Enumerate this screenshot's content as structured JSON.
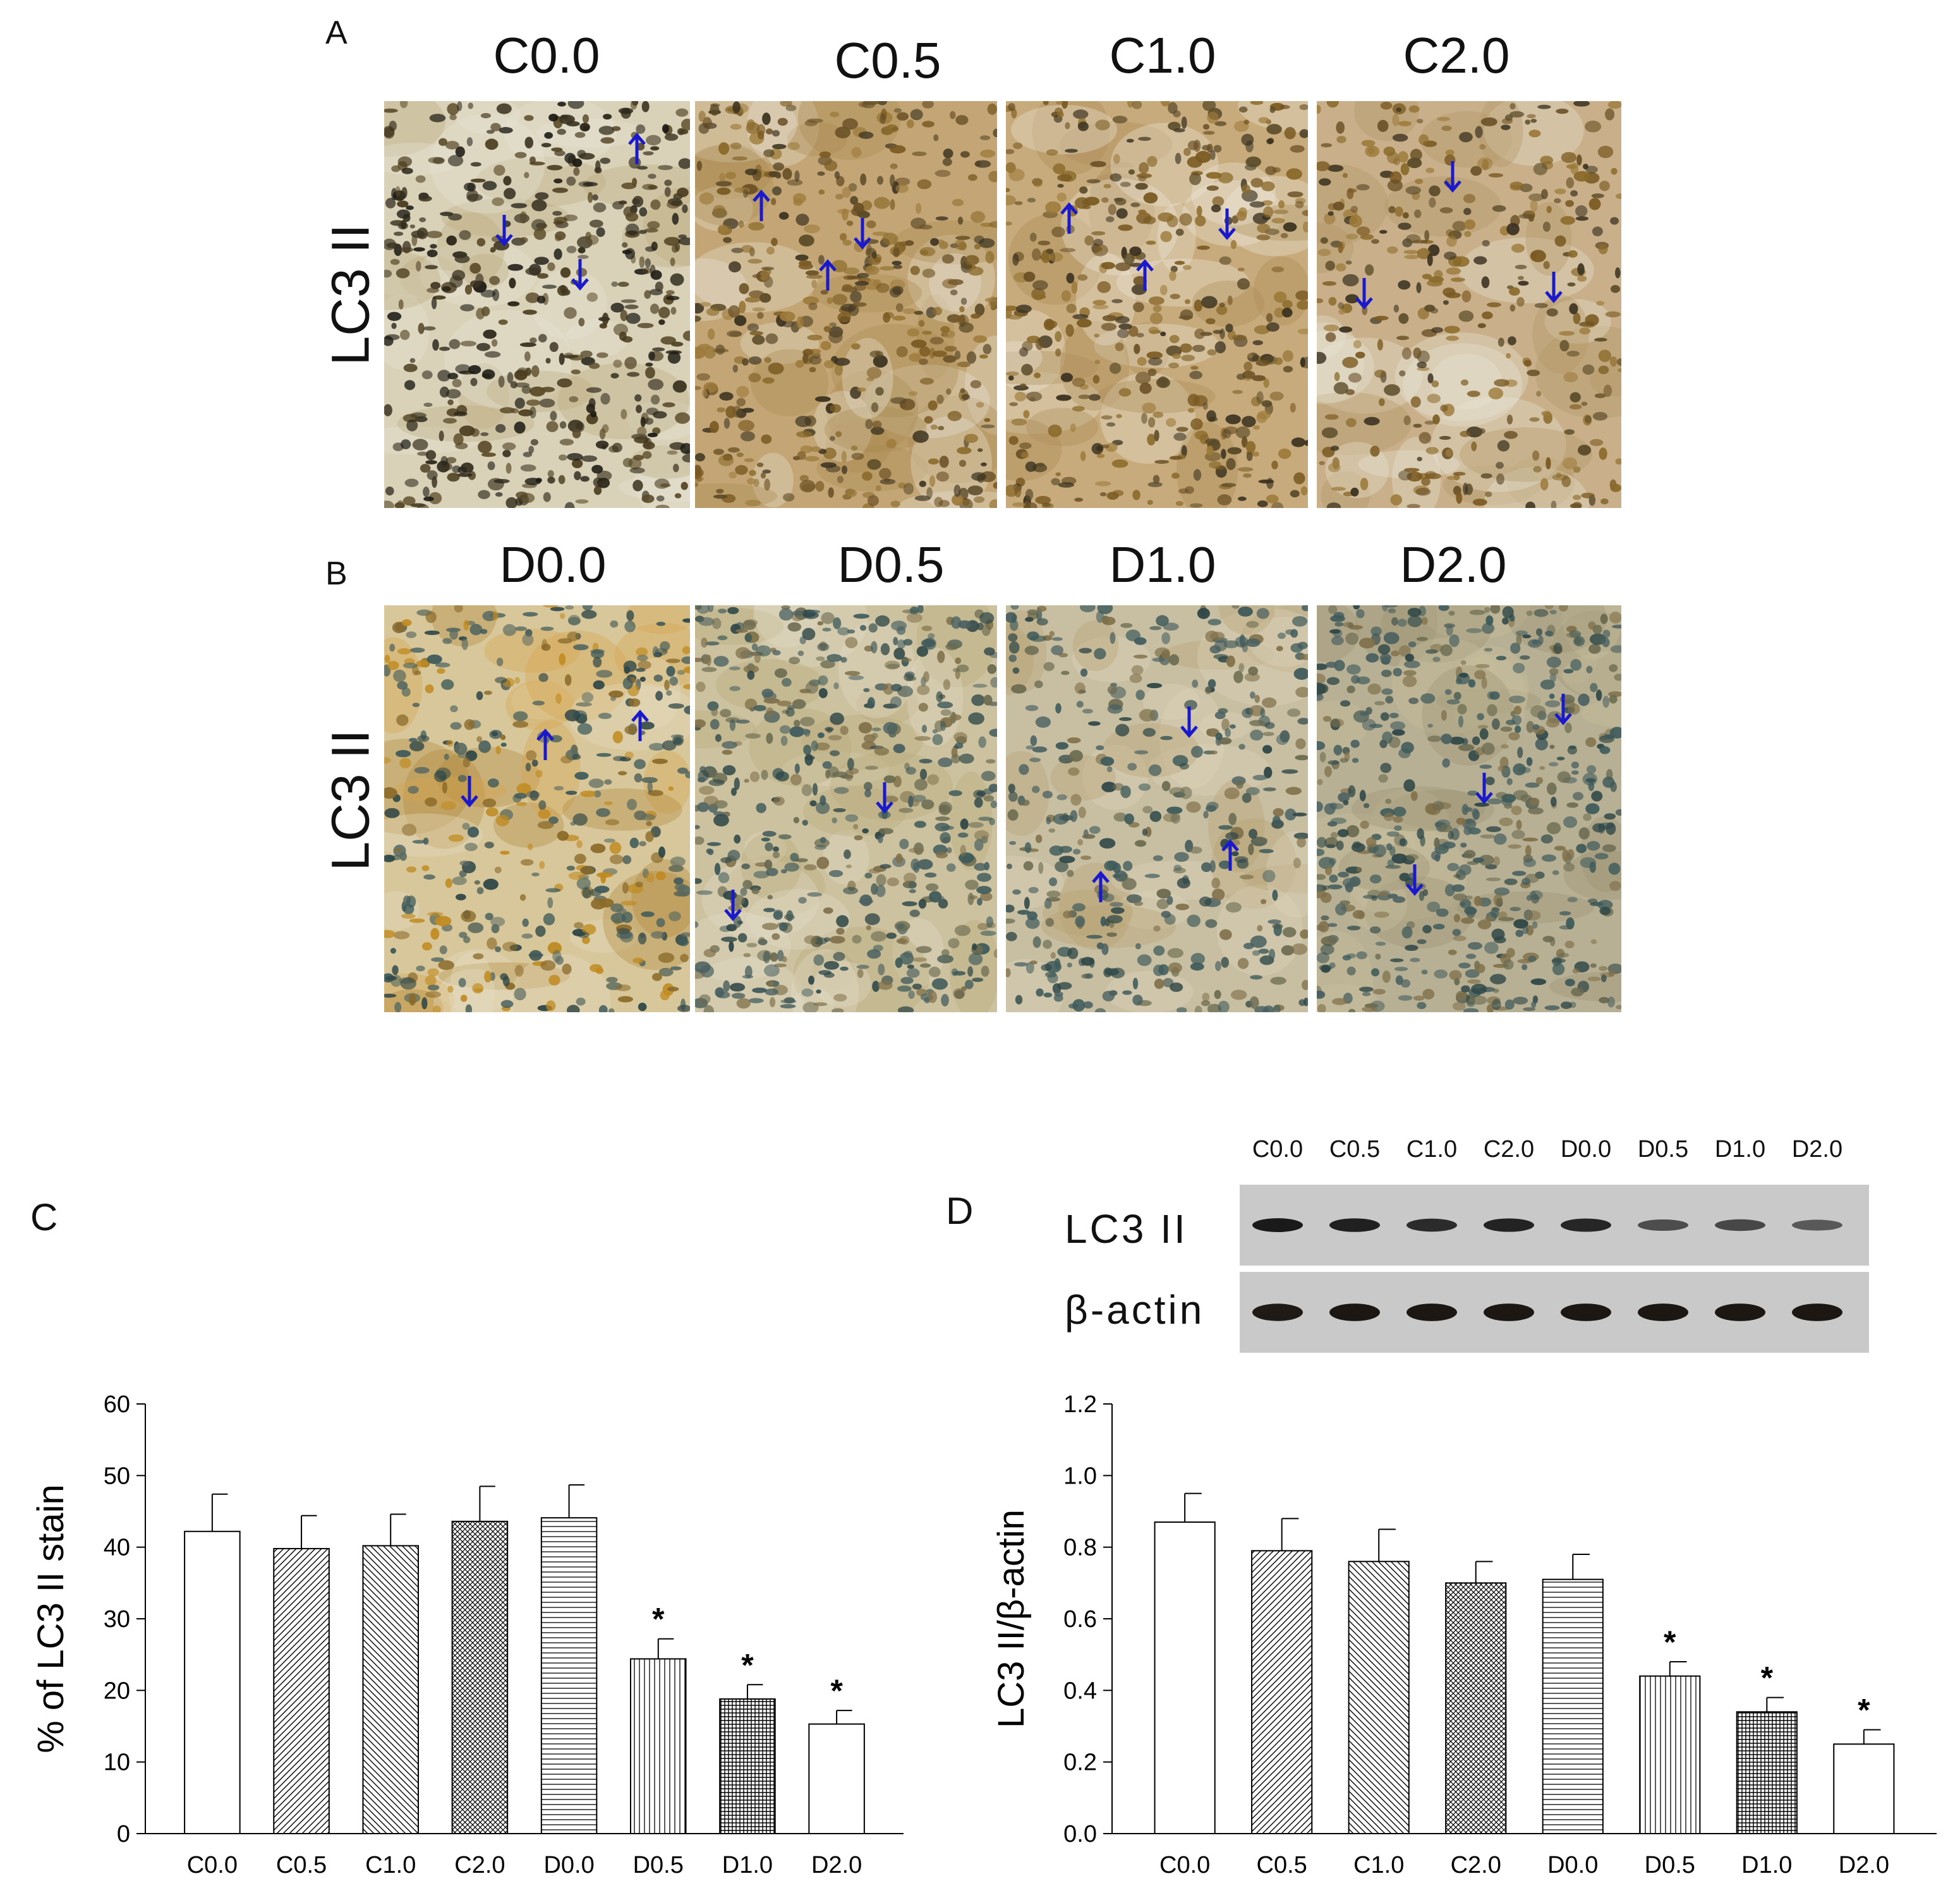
{
  "figure": {
    "panel_a": {
      "letter": "A",
      "row_label": "LC3 II",
      "columns": [
        "C0.0",
        "C0.5",
        "C1.0",
        "C2.0"
      ]
    },
    "panel_b": {
      "letter": "B",
      "row_label": "LC3 II",
      "columns": [
        "D0.0",
        "D0.5",
        "D1.0",
        "D2.0"
      ]
    },
    "panel_c": {
      "letter": "C"
    },
    "panel_d": {
      "letter": "D",
      "lanes": [
        "C0.0",
        "C0.5",
        "C1.0",
        "C2.0",
        "D0.0",
        "D0.5",
        "D1.0",
        "D2.0"
      ],
      "blot_rows": [
        "LC3 II",
        "β-actin"
      ],
      "lc3_band_intensity": [
        1.0,
        0.95,
        0.85,
        0.92,
        0.9,
        0.55,
        0.6,
        0.45
      ],
      "actin_band_intensity": [
        0.95,
        0.98,
        0.98,
        0.98,
        0.98,
        0.98,
        0.98,
        0.98
      ]
    },
    "colors": {
      "arrow": "#1a1acc",
      "stain_brown": "#8a6a2a",
      "blot_bg": "#c9c9c9"
    }
  },
  "chart_data": [
    {
      "type": "bar",
      "panel": "C",
      "title": "",
      "xlabel": "",
      "ylabel": "% of LC3 II stain",
      "ylim": [
        0,
        60
      ],
      "yticks": [
        0,
        10,
        20,
        30,
        40,
        50,
        60
      ],
      "categories": [
        "C0.0",
        "C0.5",
        "C1.0",
        "C2.0",
        "D0.0",
        "D0.5",
        "D1.0",
        "D2.0"
      ],
      "values": [
        42.2,
        39.8,
        40.2,
        43.6,
        44.1,
        24.4,
        18.8,
        15.3
      ],
      "errors": [
        5.2,
        4.6,
        4.4,
        4.9,
        4.6,
        2.8,
        2.0,
        1.9
      ],
      "patterns": [
        "none",
        "diag-right",
        "diag-left",
        "crosshatch",
        "horizontal",
        "vertical",
        "grid",
        "none"
      ],
      "annotations": [
        "",
        "",
        "",
        "",
        "",
        "*",
        "*",
        "*"
      ]
    },
    {
      "type": "bar",
      "panel": "D",
      "title": "",
      "xlabel": "",
      "ylabel": "LC3 II/β-actin",
      "ylim": [
        0,
        1.2
      ],
      "yticks": [
        "0.0",
        "0.2",
        "0.4",
        "0.6",
        "0.8",
        "1.0",
        "1.2"
      ],
      "categories": [
        "C0.0",
        "C0.5",
        "C1.0",
        "C2.0",
        "D0.0",
        "D0.5",
        "D1.0",
        "D2.0"
      ],
      "values": [
        0.87,
        0.79,
        0.76,
        0.7,
        0.71,
        0.44,
        0.34,
        0.25
      ],
      "errors": [
        0.08,
        0.09,
        0.09,
        0.06,
        0.07,
        0.04,
        0.04,
        0.04
      ],
      "patterns": [
        "none",
        "diag-right",
        "diag-left",
        "crosshatch",
        "horizontal",
        "vertical",
        "grid",
        "none"
      ],
      "annotations": [
        "",
        "",
        "",
        "",
        "",
        "*",
        "*",
        "*"
      ]
    }
  ]
}
